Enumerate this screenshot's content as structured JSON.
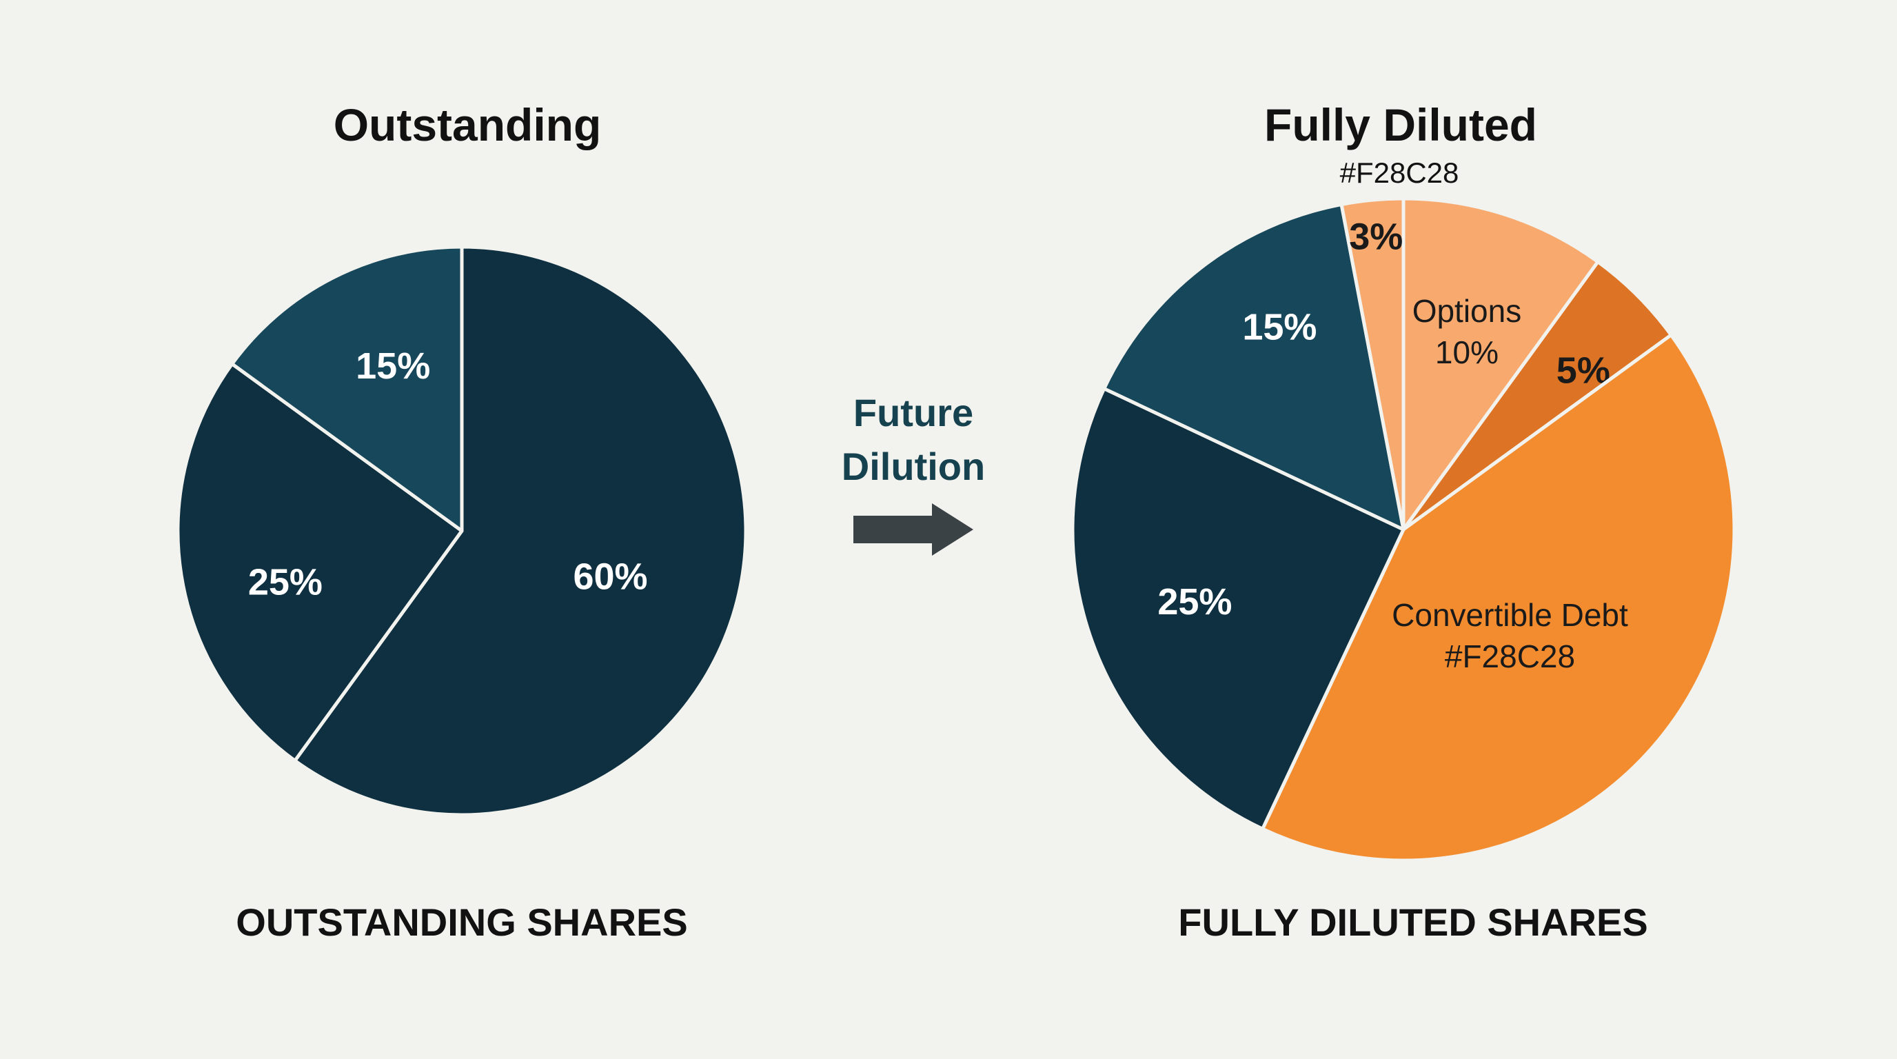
{
  "left_chart": {
    "title": "Outstanding",
    "footer": "OUTSTANDING SHARES"
  },
  "right_chart": {
    "title": "Fully Diluted",
    "subtitle": "#F28C28",
    "footer": "FULLY DILUTED SHARES"
  },
  "transition": {
    "line1": "Future",
    "line2": "Dilution"
  },
  "chart_data": [
    {
      "type": "pie",
      "title": "Outstanding",
      "slices": [
        {
          "value": 60,
          "label": "60%",
          "color": "#0f3040"
        },
        {
          "value": 25,
          "label": "25%",
          "color": "#0f3040"
        },
        {
          "value": 15,
          "label": "15%",
          "color": "#16475a"
        }
      ]
    },
    {
      "type": "pie",
      "title": "Fully Diluted",
      "subtitle": "#F28C28",
      "slices": [
        {
          "value": 10,
          "label": "10%",
          "name": "Options",
          "color": "#f7a96e"
        },
        {
          "value": 5,
          "label": "5%",
          "color": "#dd7425"
        },
        {
          "value": 42,
          "label": "",
          "name": "Convertible Debt",
          "sublabel": "#F28C28",
          "color": "#f28c2f"
        },
        {
          "value": 25,
          "label": "25%",
          "color": "#0f3040"
        },
        {
          "value": 15,
          "label": "15%",
          "color": "#16475a"
        },
        {
          "value": 3,
          "label": "3%",
          "color": "#f7a96e"
        }
      ]
    }
  ],
  "colors": {
    "navy": "#0f3040",
    "teal": "#16475a",
    "arrow": "#3a4246",
    "accent": "#F28C28"
  },
  "icons": {
    "arrow": "right-arrow-icon"
  }
}
